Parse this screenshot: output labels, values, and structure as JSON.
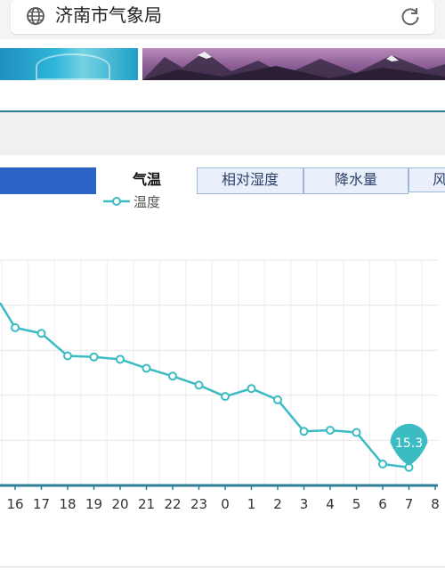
{
  "browser": {
    "site_title": "济南市气象局",
    "icons": [
      "globe-icon",
      "reload-icon"
    ]
  },
  "tabs": [
    {
      "label": "气温",
      "active": true
    },
    {
      "label": "相对湿度",
      "active": false
    },
    {
      "label": "降水量",
      "active": false
    },
    {
      "label": "风",
      "active": false
    }
  ],
  "colors": {
    "accent": "#2c63c6",
    "line": "#3bbcc3",
    "axis": "#2d7d95"
  },
  "chart_data": {
    "type": "line",
    "x": [
      "16",
      "17",
      "18",
      "19",
      "20",
      "21",
      "22",
      "23",
      "0",
      "1",
      "2",
      "3",
      "4",
      "5",
      "6",
      "7",
      "8"
    ],
    "series": [
      {
        "name": "温度",
        "values": [
          21.5,
          21.25,
          20.25,
          20.2,
          20.1,
          19.7,
          19.35,
          18.95,
          18.45,
          18.8,
          18.3,
          16.9,
          16.95,
          16.85,
          15.45,
          15.3,
          null
        ]
      }
    ],
    "callout": {
      "x": "7",
      "label": "15.3"
    },
    "grid": true
  }
}
